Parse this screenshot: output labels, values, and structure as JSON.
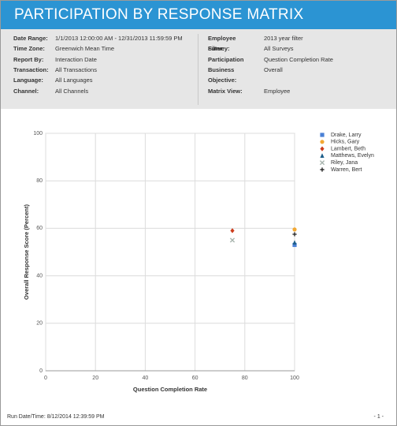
{
  "header": {
    "title": "PARTICIPATION BY RESPONSE MATRIX"
  },
  "filters": {
    "left": [
      {
        "label": "Date Range:",
        "value": "1/1/2013 12:00:00 AM - 12/31/2013 11:59:59 PM"
      },
      {
        "label": "Time Zone:",
        "value": "Greenwich Mean Time"
      },
      {
        "label": "Report By:",
        "value": "Interaction Date"
      },
      {
        "label": "Transaction:",
        "value": "All Transactions"
      },
      {
        "label": "Language:",
        "value": "All Languages"
      },
      {
        "label": "Channel:",
        "value": "All Channels"
      }
    ],
    "right": [
      {
        "label": "Employee Filter:",
        "value": "2013 year filter"
      },
      {
        "label": "Survey:",
        "value": "All Surveys"
      },
      {
        "label": "Participation",
        "value": "Question Completion Rate"
      },
      {
        "label": "Business Objective:",
        "value": "Overall"
      },
      {
        "label": "Matrix View:",
        "value": "Employee"
      }
    ]
  },
  "chart_data": {
    "type": "scatter",
    "x_label": "Question Completion Rate",
    "y_label": "Overall Response Score (Percent)",
    "xlim": [
      0,
      100
    ],
    "xticks": [
      0,
      20,
      40,
      60,
      80,
      100
    ],
    "ylim": [
      0,
      100
    ],
    "yticks": [
      0,
      20,
      40,
      60,
      80,
      100
    ],
    "grid": true,
    "legend": "right",
    "series": [
      {
        "name": "Drake, Larry",
        "color": "#4a80d6",
        "marker": "square",
        "x": [
          100
        ],
        "values": [
          53
        ]
      },
      {
        "name": "Hicks, Gary",
        "color": "#f2a833",
        "marker": "circle",
        "x": [
          100
        ],
        "values": [
          59.5
        ]
      },
      {
        "name": "Lambert, Beth",
        "color": "#cc3c1c",
        "marker": "diamond",
        "x": [
          75
        ],
        "values": [
          59
        ]
      },
      {
        "name": "Matthews, Evelyn",
        "color": "#1d5e8a",
        "marker": "triangle",
        "x": [
          100
        ],
        "values": [
          54
        ]
      },
      {
        "name": "Riley, Jana",
        "color": "#a8b4ae",
        "marker": "x",
        "x": [
          75
        ],
        "values": [
          55
        ]
      },
      {
        "name": "Warren, Bert",
        "color": "#2b2b2b",
        "marker": "plus",
        "x": [
          100
        ],
        "values": [
          57.5
        ]
      }
    ]
  },
  "footer": {
    "run_date": "Run Date/Time: 8/12/2014 12:39:59 PM",
    "page": "- 1 -"
  }
}
